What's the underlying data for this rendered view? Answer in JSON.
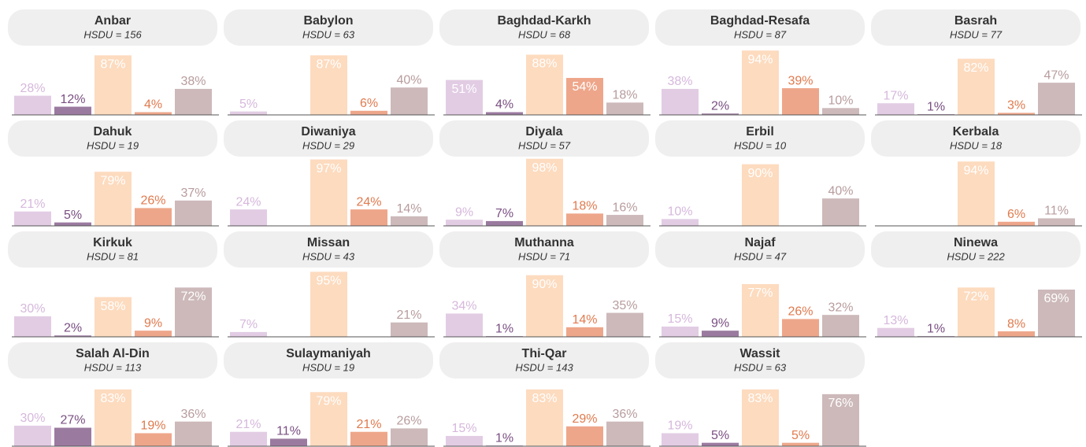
{
  "chart_data": [
    {
      "type": "bar",
      "title": "Anbar",
      "subtitle": "HSDU = 156",
      "values": [
        28,
        12,
        87,
        4,
        38
      ],
      "value_labels": [
        "28%",
        "12%",
        "87%",
        "4%",
        "38%"
      ],
      "colors": [
        "#e2cce4",
        "#9b7aa0",
        "#fddbbf",
        "#eea68a",
        "#cdb9ba"
      ],
      "ylim": [
        0,
        100
      ]
    },
    {
      "type": "bar",
      "title": "Babylon",
      "subtitle": "HSDU = 63",
      "values": [
        5,
        null,
        87,
        6,
        40
      ],
      "value_labels": [
        "5%",
        null,
        "87%",
        "6%",
        "40%"
      ],
      "colors": [
        "#e2cce4",
        "#9b7aa0",
        "#fddbbf",
        "#eea68a",
        "#cdb9ba"
      ],
      "ylim": [
        0,
        100
      ]
    },
    {
      "type": "bar",
      "title": "Baghdad-Karkh",
      "subtitle": "HSDU = 68",
      "values": [
        51,
        4,
        88,
        54,
        18
      ],
      "value_labels": [
        "51%",
        "4%",
        "88%",
        "54%",
        "18%"
      ],
      "colors": [
        "#e2cce4",
        "#9b7aa0",
        "#fddbbf",
        "#eea68a",
        "#cdb9ba"
      ],
      "ylim": [
        0,
        100
      ]
    },
    {
      "type": "bar",
      "title": "Baghdad-Resafa",
      "subtitle": "HSDU = 87",
      "values": [
        38,
        2,
        94,
        39,
        10
      ],
      "value_labels": [
        "38%",
        "2%",
        "94%",
        "39%",
        "10%"
      ],
      "colors": [
        "#e2cce4",
        "#9b7aa0",
        "#fddbbf",
        "#eea68a",
        "#cdb9ba"
      ],
      "ylim": [
        0,
        100
      ]
    },
    {
      "type": "bar",
      "title": "Basrah",
      "subtitle": "HSDU = 77",
      "values": [
        17,
        1,
        82,
        3,
        47
      ],
      "value_labels": [
        "17%",
        "1%",
        "82%",
        "3%",
        "47%"
      ],
      "colors": [
        "#e2cce4",
        "#9b7aa0",
        "#fddbbf",
        "#eea68a",
        "#cdb9ba"
      ],
      "ylim": [
        0,
        100
      ]
    },
    {
      "type": "bar",
      "title": "Dahuk",
      "subtitle": "HSDU = 19",
      "values": [
        21,
        5,
        79,
        26,
        37
      ],
      "value_labels": [
        "21%",
        "5%",
        "79%",
        "26%",
        "37%"
      ],
      "colors": [
        "#e2cce4",
        "#9b7aa0",
        "#fddbbf",
        "#eea68a",
        "#cdb9ba"
      ],
      "ylim": [
        0,
        100
      ]
    },
    {
      "type": "bar",
      "title": "Diwaniya",
      "subtitle": "HSDU = 29",
      "values": [
        24,
        null,
        97,
        24,
        14
      ],
      "value_labels": [
        "24%",
        null,
        "97%",
        "24%",
        "14%"
      ],
      "colors": [
        "#e2cce4",
        "#9b7aa0",
        "#fddbbf",
        "#eea68a",
        "#cdb9ba"
      ],
      "ylim": [
        0,
        100
      ]
    },
    {
      "type": "bar",
      "title": "Diyala",
      "subtitle": "HSDU = 57",
      "values": [
        9,
        7,
        98,
        18,
        16
      ],
      "value_labels": [
        "9%",
        "7%",
        "98%",
        "18%",
        "16%"
      ],
      "colors": [
        "#e2cce4",
        "#9b7aa0",
        "#fddbbf",
        "#eea68a",
        "#cdb9ba"
      ],
      "ylim": [
        0,
        100
      ]
    },
    {
      "type": "bar",
      "title": "Erbil",
      "subtitle": "HSDU = 10",
      "values": [
        10,
        null,
        90,
        null,
        40
      ],
      "value_labels": [
        "10%",
        null,
        "90%",
        null,
        "40%"
      ],
      "colors": [
        "#e2cce4",
        "#9b7aa0",
        "#fddbbf",
        "#eea68a",
        "#cdb9ba"
      ],
      "ylim": [
        0,
        100
      ]
    },
    {
      "type": "bar",
      "title": "Kerbala",
      "subtitle": "HSDU = 18",
      "values": [
        null,
        null,
        94,
        6,
        11
      ],
      "value_labels": [
        null,
        null,
        "94%",
        "6%",
        "11%"
      ],
      "colors": [
        "#e2cce4",
        "#9b7aa0",
        "#fddbbf",
        "#eea68a",
        "#cdb9ba"
      ],
      "ylim": [
        0,
        100
      ]
    },
    {
      "type": "bar",
      "title": "Kirkuk",
      "subtitle": "HSDU = 81",
      "values": [
        30,
        2,
        58,
        9,
        72
      ],
      "value_labels": [
        "30%",
        "2%",
        "58%",
        "9%",
        "72%"
      ],
      "colors": [
        "#e2cce4",
        "#9b7aa0",
        "#fddbbf",
        "#eea68a",
        "#cdb9ba"
      ],
      "ylim": [
        0,
        100
      ]
    },
    {
      "type": "bar",
      "title": "Missan",
      "subtitle": "HSDU = 43",
      "values": [
        7,
        null,
        95,
        null,
        21
      ],
      "value_labels": [
        "7%",
        null,
        "95%",
        null,
        "21%"
      ],
      "colors": [
        "#e2cce4",
        "#9b7aa0",
        "#fddbbf",
        "#eea68a",
        "#cdb9ba"
      ],
      "ylim": [
        0,
        100
      ]
    },
    {
      "type": "bar",
      "title": "Muthanna",
      "subtitle": "HSDU = 71",
      "values": [
        34,
        1,
        90,
        14,
        35
      ],
      "value_labels": [
        "34%",
        "1%",
        "90%",
        "14%",
        "35%"
      ],
      "colors": [
        "#e2cce4",
        "#9b7aa0",
        "#fddbbf",
        "#eea68a",
        "#cdb9ba"
      ],
      "ylim": [
        0,
        100
      ]
    },
    {
      "type": "bar",
      "title": "Najaf",
      "subtitle": "HSDU = 47",
      "values": [
        15,
        9,
        77,
        26,
        32
      ],
      "value_labels": [
        "15%",
        "9%",
        "77%",
        "26%",
        "32%"
      ],
      "colors": [
        "#e2cce4",
        "#9b7aa0",
        "#fddbbf",
        "#eea68a",
        "#cdb9ba"
      ],
      "ylim": [
        0,
        100
      ]
    },
    {
      "type": "bar",
      "title": "Ninewa",
      "subtitle": "HSDU = 222",
      "values": [
        13,
        1,
        72,
        8,
        69
      ],
      "value_labels": [
        "13%",
        "1%",
        "72%",
        "8%",
        "69%"
      ],
      "colors": [
        "#e2cce4",
        "#9b7aa0",
        "#fddbbf",
        "#eea68a",
        "#cdb9ba"
      ],
      "ylim": [
        0,
        100
      ]
    },
    {
      "type": "bar",
      "title": "Salah Al-Din",
      "subtitle": "HSDU = 113",
      "values": [
        30,
        27,
        83,
        19,
        36
      ],
      "value_labels": [
        "30%",
        "27%",
        "83%",
        "19%",
        "36%"
      ],
      "colors": [
        "#e2cce4",
        "#9b7aa0",
        "#fddbbf",
        "#eea68a",
        "#cdb9ba"
      ],
      "ylim": [
        0,
        100
      ]
    },
    {
      "type": "bar",
      "title": "Sulaymaniyah",
      "subtitle": "HSDU = 19",
      "values": [
        21,
        11,
        79,
        21,
        26
      ],
      "value_labels": [
        "21%",
        "11%",
        "79%",
        "21%",
        "26%"
      ],
      "colors": [
        "#e2cce4",
        "#9b7aa0",
        "#fddbbf",
        "#eea68a",
        "#cdb9ba"
      ],
      "ylim": [
        0,
        100
      ]
    },
    {
      "type": "bar",
      "title": "Thi-Qar",
      "subtitle": "HSDU = 143",
      "values": [
        15,
        1,
        83,
        29,
        36
      ],
      "value_labels": [
        "15%",
        "1%",
        "83%",
        "29%",
        "36%"
      ],
      "colors": [
        "#e2cce4",
        "#9b7aa0",
        "#fddbbf",
        "#eea68a",
        "#cdb9ba"
      ],
      "ylim": [
        0,
        100
      ]
    },
    {
      "type": "bar",
      "title": "Wassit",
      "subtitle": "HSDU = 63",
      "values": [
        19,
        5,
        83,
        5,
        76
      ],
      "value_labels": [
        "19%",
        "5%",
        "83%",
        "5%",
        "76%"
      ],
      "colors": [
        "#e2cce4",
        "#9b7aa0",
        "#fddbbf",
        "#eea68a",
        "#cdb9ba"
      ],
      "ylim": [
        0,
        100
      ]
    }
  ]
}
